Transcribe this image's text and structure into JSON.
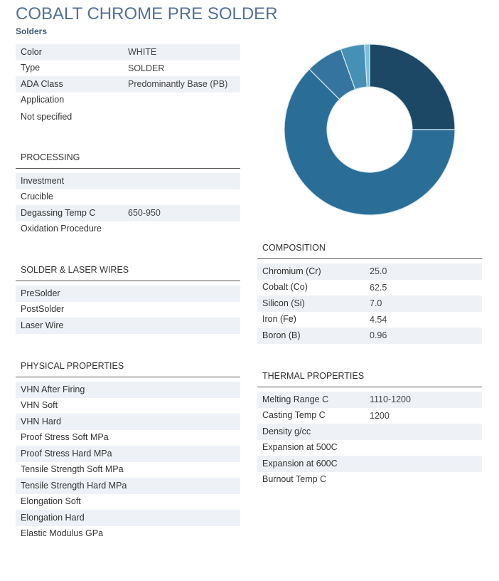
{
  "title": "COBALT CHROME PRE SOLDER",
  "category": "Solders",
  "general": [
    {
      "label": "Color",
      "value": "WHITE"
    },
    {
      "label": "Type",
      "value": "SOLDER"
    },
    {
      "label": "ADA Class",
      "value": "Predominantly Base (PB)"
    },
    {
      "label": "Application",
      "value": ""
    }
  ],
  "application_value": "Not specified",
  "processing": {
    "header": "PROCESSING",
    "rows": [
      {
        "label": "Investment",
        "value": ""
      },
      {
        "label": "Crucible",
        "value": ""
      },
      {
        "label": "Degassing Temp C",
        "value": "650-950"
      },
      {
        "label": "Oxidation Procedure",
        "value": ""
      }
    ]
  },
  "wires": {
    "header": "SOLDER & LASER WIRES",
    "rows": [
      {
        "label": "PreSolder",
        "value": ""
      },
      {
        "label": "PostSolder",
        "value": ""
      },
      {
        "label": "Laser Wire",
        "value": ""
      }
    ]
  },
  "physical": {
    "header": "PHYSICAL PROPERTIES",
    "rows": [
      {
        "label": "VHN After Firing",
        "value": ""
      },
      {
        "label": "VHN Soft",
        "value": ""
      },
      {
        "label": "VHN Hard",
        "value": ""
      },
      {
        "label": "Proof Stress Soft MPa",
        "value": ""
      },
      {
        "label": "Proof Stress Hard MPa",
        "value": ""
      },
      {
        "label": "Tensile Strength Soft MPa",
        "value": ""
      },
      {
        "label": "Tensile Strength Hard MPa",
        "value": ""
      },
      {
        "label": "Elongation Soft",
        "value": ""
      },
      {
        "label": "Elongation Hard",
        "value": ""
      },
      {
        "label": "Elastic Modulus GPa",
        "value": ""
      }
    ]
  },
  "composition": {
    "header": "COMPOSITION",
    "rows": [
      {
        "label": "Chromium (Cr)",
        "value": "25.0"
      },
      {
        "label": "Cobalt (Co)",
        "value": "62.5"
      },
      {
        "label": "Silicon (Si)",
        "value": "7.0"
      },
      {
        "label": "Iron (Fe)",
        "value": "4.54"
      },
      {
        "label": "Boron (B)",
        "value": "0.96"
      }
    ]
  },
  "thermal": {
    "header": "THERMAL PROPERTIES",
    "rows": [
      {
        "label": "Melting Range C",
        "value": "1110-1200"
      },
      {
        "label": "Casting Temp C",
        "value": "1200"
      },
      {
        "label": "Density g/cc",
        "value": ""
      },
      {
        "label": "Expansion at 500C",
        "value": ""
      },
      {
        "label": "Expansion at 600C",
        "value": ""
      },
      {
        "label": "Burnout Temp C",
        "value": ""
      }
    ]
  },
  "chart_data": {
    "type": "pie",
    "variant": "donut",
    "categories": [
      "Chromium (Cr)",
      "Cobalt (Co)",
      "Silicon (Si)",
      "Iron (Fe)",
      "Boron (B)"
    ],
    "values": [
      25.0,
      62.5,
      7.0,
      4.54,
      0.96
    ],
    "colors": [
      "#1c4866",
      "#2a6e98",
      "#35749f",
      "#4690b6",
      "#7ec0d9"
    ]
  }
}
